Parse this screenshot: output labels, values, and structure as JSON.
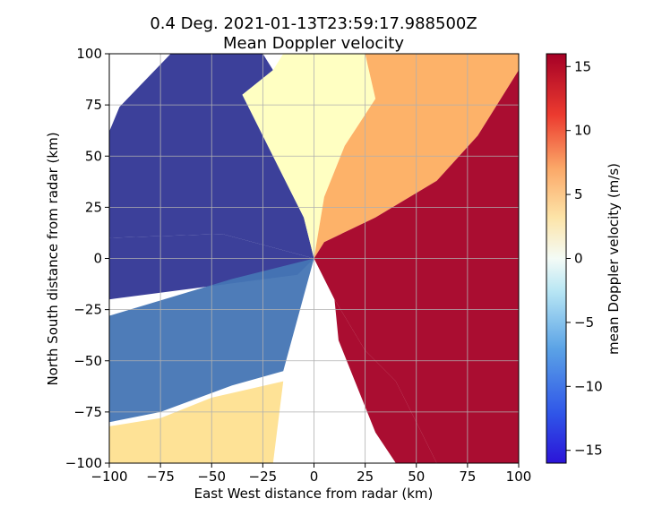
{
  "chart_data": {
    "type": "heatmap",
    "title_line1": "0.4 Deg. 2021-01-13T23:59:17.988500Z",
    "title_line2": "Mean Doppler velocity",
    "xlabel": "East West distance from radar (km)",
    "ylabel": "North South distance from radar (km)",
    "xlim": [
      -100,
      100
    ],
    "ylim": [
      -100,
      100
    ],
    "xticks": [
      "−100",
      "−75",
      "−50",
      "−25",
      "0",
      "25",
      "50",
      "75",
      "100"
    ],
    "yticks": [
      "100",
      "75",
      "50",
      "25",
      "0",
      "−25",
      "−50",
      "−75",
      "−100"
    ],
    "grid": true,
    "colorbar": {
      "label": "mean Doppler velocity (m/s)",
      "range": [
        -16,
        16
      ],
      "ticks": [
        "15",
        "10",
        "5",
        "0",
        "−5",
        "−10",
        "−15"
      ],
      "colormap": "red-yellow-blue (reversed)",
      "color_stops": [
        "#313695",
        "#2a3fd8",
        "#4575b4",
        "#74add1",
        "#abd9e9",
        "#e0f3f8",
        "#ffffbf",
        "#fee090",
        "#fdae61",
        "#f46d43",
        "#d73027",
        "#a50026"
      ]
    },
    "regions": [
      {
        "name": "northwest",
        "velocity_ms": -15
      },
      {
        "name": "west",
        "velocity_ms": -15
      },
      {
        "name": "southwest",
        "velocity_ms": -9
      },
      {
        "name": "south-southwest far",
        "velocity_ms": 5
      },
      {
        "name": "north-northeast",
        "velocity_ms": 2
      },
      {
        "name": "northeast",
        "velocity_ms": 8
      },
      {
        "name": "east",
        "velocity_ms": 16
      },
      {
        "name": "southeast",
        "velocity_ms": 16
      }
    ]
  }
}
